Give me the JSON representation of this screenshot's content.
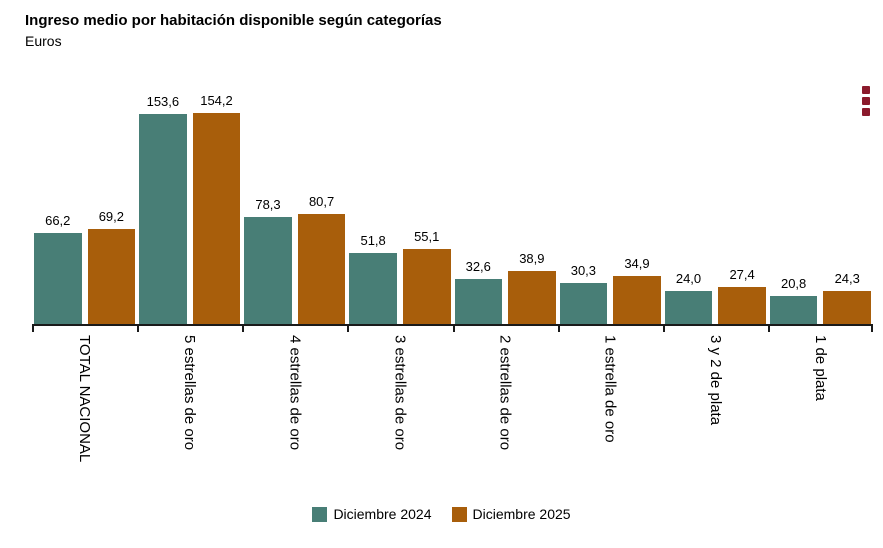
{
  "chart_data": {
    "type": "bar",
    "title": "Ingreso medio por habitación disponible según categorías",
    "subtitle": "Euros",
    "categories": [
      "TOTAL NACIONAL",
      "5 estrellas de oro",
      "4 estrellas de oro",
      "3 estrellas de oro",
      "2 estrellas de oro",
      "1 estrella de oro",
      "3 y 2 de plata",
      "1 de plata"
    ],
    "series": [
      {
        "name": "Diciembre 2024",
        "color": "#487E76",
        "values": [
          66.2,
          153.6,
          78.3,
          51.8,
          32.6,
          30.3,
          24.0,
          20.8
        ]
      },
      {
        "name": "Diciembre 2025",
        "color": "#A85E0B",
        "values": [
          69.2,
          154.2,
          80.7,
          55.1,
          38.9,
          34.9,
          27.4,
          24.3
        ]
      }
    ],
    "value_labels": true,
    "decimal_separator": ",",
    "xlabel": "",
    "ylabel": "Euros",
    "ylim": [
      0,
      160
    ],
    "grid": false,
    "legend_position": "bottom",
    "x_label_rotation": 90
  },
  "colors": {
    "menu_icon": "#8B1A2C",
    "axis": "#1a1a1a",
    "background": "#ffffff"
  },
  "icons": {
    "menu": "kebab-menu-icon"
  }
}
